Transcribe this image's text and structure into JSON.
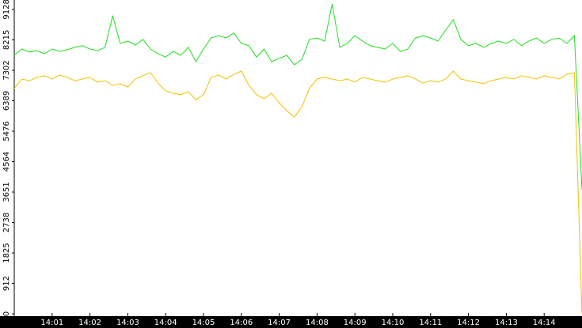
{
  "chart_data": {
    "type": "line",
    "x": [
      840,
      840.2,
      840.4,
      840.6,
      840.8,
      841,
      841.2,
      841.4,
      841.6,
      841.8,
      842,
      842.2,
      842.4,
      842.6,
      842.8,
      843,
      843.2,
      843.4,
      843.6,
      843.8,
      844,
      844.2,
      844.4,
      844.6,
      844.8,
      845,
      845.2,
      845.4,
      845.6,
      845.8,
      846,
      846.2,
      846.4,
      846.6,
      846.8,
      847,
      847.2,
      847.4,
      847.6,
      847.8,
      848,
      848.2,
      848.4,
      848.6,
      848.8,
      849,
      849.2,
      849.4,
      849.6,
      849.8,
      850,
      850.2,
      850.4,
      850.6,
      850.8,
      851,
      851.2,
      851.4,
      851.6,
      851.8,
      852,
      852.2,
      852.4,
      852.6,
      852.8,
      853,
      853.2,
      853.4,
      853.6,
      853.8,
      854,
      854.2,
      854.4,
      854.6,
      854.8,
      855
    ],
    "series": [
      {
        "color": "#1ee01e",
        "values": [
          7750,
          7940,
          7850,
          7890,
          7800,
          7940,
          7870,
          7920,
          7990,
          8040,
          7940,
          7890,
          7990,
          8940,
          8110,
          8180,
          8060,
          8230,
          7940,
          7800,
          7700,
          7870,
          7750,
          7990,
          7560,
          7940,
          8270,
          8340,
          8270,
          8420,
          8110,
          8040,
          7700,
          7940,
          7560,
          7660,
          7750,
          7470,
          7630,
          8230,
          8270,
          8180,
          9290,
          7990,
          8110,
          8340,
          8180,
          8040,
          7990,
          7940,
          8110,
          7870,
          7940,
          8270,
          8340,
          8270,
          8180,
          8510,
          8820,
          8230,
          8040,
          8110,
          7990,
          8110,
          8180,
          8110,
          8230,
          8040,
          8180,
          8270,
          8110,
          8230,
          8270,
          8110,
          8340,
          3720
        ]
      },
      {
        "color": "#f2c200",
        "values": [
          6760,
          7040,
          6990,
          7090,
          7140,
          7040,
          7160,
          7090,
          6990,
          7040,
          7090,
          6950,
          6990,
          6850,
          6900,
          6800,
          7040,
          7140,
          7230,
          6920,
          6690,
          6610,
          6570,
          6660,
          6420,
          6570,
          7090,
          7160,
          7040,
          7180,
          7280,
          6850,
          6570,
          6450,
          6610,
          6330,
          6090,
          5900,
          6210,
          6760,
          7040,
          7090,
          7040,
          6990,
          7040,
          6950,
          7090,
          7040,
          6990,
          6950,
          7040,
          7090,
          7140,
          7040,
          6920,
          6990,
          6950,
          7040,
          7280,
          7040,
          6990,
          6950,
          6900,
          6990,
          7040,
          7090,
          7040,
          7140,
          7090,
          7040,
          7140,
          7090,
          7040,
          7180,
          7230,
          0
        ]
      }
    ],
    "xlim": [
      840,
      855
    ],
    "xticks": [
      {
        "value": 841,
        "label": "14:01"
      },
      {
        "value": 842,
        "label": "14:02"
      },
      {
        "value": 843,
        "label": "14:03"
      },
      {
        "value": 844,
        "label": "14:04"
      },
      {
        "value": 845,
        "label": "14:05"
      },
      {
        "value": 846,
        "label": "14:06"
      },
      {
        "value": 847,
        "label": "14:07"
      },
      {
        "value": 848,
        "label": "14:08"
      },
      {
        "value": 849,
        "label": "14:09"
      },
      {
        "value": 850,
        "label": "14:10"
      },
      {
        "value": 851,
        "label": "14:11"
      },
      {
        "value": 852,
        "label": "14:12"
      },
      {
        "value": 853,
        "label": "14:13"
      },
      {
        "value": 854,
        "label": "14:14"
      }
    ],
    "ylim": [
      -70,
      9410
    ],
    "yticks": [
      0,
      912,
      1825,
      2738,
      3651,
      4564,
      5476,
      6389,
      7302,
      8215,
      9128
    ]
  }
}
